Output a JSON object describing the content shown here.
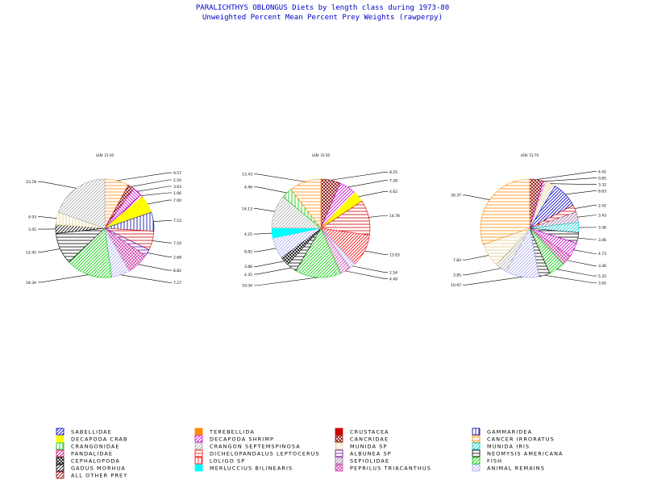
{
  "header": {
    "title": "PARALICHTHYS OBLONGUS Diets by length class during 1973-80",
    "subtitle": "Unweighted Percent Mean Percent Prey Weights (rawperpy)"
  },
  "colors": {
    "title_text": "#0000cc",
    "SABELLIDAE": "#0000cc",
    "TEREBELLIDA": "#ff8800",
    "CRUSTACEA": "#cc0000",
    "GAMMARIDEA": "#000099",
    "DECAPODA CRAB": "#ffff00",
    "DECAPODA SHRIMP": "#cc00cc",
    "CANCRIDAE": "#880000",
    "CANCER IRRORATUS": "#ff8800",
    "CRANGONIDAE": "#00cc00",
    "CRANGON SEPTEMSPINOSA": "#aaaaaa",
    "MUNIDA SP": "#ddcc88",
    "MUNIDA IRIS": "#00cccc",
    "PANDALIDAE": "#cc0066",
    "DICHELOPANDALUS LEPTOCERUS": "#ff0000",
    "ALBUNEA SP": "#660099",
    "NEOMYSIS AMERICANA": "#000000",
    "CEPHALOPODA": "#000000",
    "LOLIGO SP": "#ff0000",
    "SEPIOLIDAE": "#996699",
    "FISH": "#00cc00",
    "GADUS MORHUA": "#000000",
    "MERLUCCIUS BILINEARIS": "#00ffff",
    "PEPRILUS TRIACANTHUS": "#cc44aa",
    "ANIMAL REMAINS": "#aaaaee",
    "ALL OTHER PREY": "#880000"
  },
  "legend": {
    "items": [
      {
        "label": "SABELLIDAE",
        "icon": "diagonal-hatch-icon"
      },
      {
        "label": "TEREBELLIDA",
        "icon": "solid-swatch-icon"
      },
      {
        "label": "CRUSTACEA",
        "icon": "solid-swatch-icon"
      },
      {
        "label": "GAMMARIDEA",
        "icon": "vertical-hatch-icon"
      },
      {
        "label": "DECAPODA CRAB",
        "icon": "solid-swatch-icon"
      },
      {
        "label": "DECAPODA SHRIMP",
        "icon": "diagonal-hatch-icon"
      },
      {
        "label": "CANCRIDAE",
        "icon": "cross-hatch-icon"
      },
      {
        "label": "CANCER IRRORATUS",
        "icon": "horizontal-hatch-icon"
      },
      {
        "label": "CRANGONIDAE",
        "icon": "vertical-hatch-icon"
      },
      {
        "label": "CRANGON SEPTEMSPINOSA",
        "icon": "diagonal-hatch-icon"
      },
      {
        "label": "MUNIDA SP",
        "icon": "vertical-hatch-icon"
      },
      {
        "label": "MUNIDA IRIS",
        "icon": "diagonal-hatch-icon"
      },
      {
        "label": "PANDALIDAE",
        "icon": "diagonal-hatch-icon"
      },
      {
        "label": "DICHELOPANDALUS LEPTOCERUS",
        "icon": "horizontal-hatch-icon"
      },
      {
        "label": "ALBUNEA SP",
        "icon": "horizontal-hatch-icon"
      },
      {
        "label": "NEOMYSIS AMERICANA",
        "icon": "horizontal-hatch-icon"
      },
      {
        "label": "CEPHALOPODA",
        "icon": "cross-hatch-icon"
      },
      {
        "label": "LOLIGO SP",
        "icon": "vertical-hatch-icon"
      },
      {
        "label": "SEPIOLIDAE",
        "icon": "diagonal-hatch-icon"
      },
      {
        "label": "FISH",
        "icon": "diagonal-hatch-icon"
      },
      {
        "label": "GADUS MORHUA",
        "icon": "diagonal-hatch-icon"
      },
      {
        "label": "MERLUCCIUS BILINEARIS",
        "icon": "solid-swatch-icon"
      },
      {
        "label": "PEPRILUS TRIACANTHUS",
        "icon": "cross-hatch-icon"
      },
      {
        "label": "ANIMAL REMAINS",
        "icon": "diagonal-hatch-icon"
      },
      {
        "label": "ALL OTHER PREY",
        "icon": "diagonal-hatch-icon"
      }
    ]
  },
  "chart_data": [
    {
      "type": "pie",
      "title": "LEN: 21-30",
      "slices": [
        {
          "label": "TEREBELLIDA",
          "value": 9.57,
          "pattern": "horizontal"
        },
        {
          "label": "CANCRIDAE",
          "value": 2.5,
          "pattern": "cross"
        },
        {
          "label": "DECAPODA SHRIMP",
          "value": 3.63,
          "pattern": "backdiag"
        },
        {
          "label": "DECAPODA SHRIMP",
          "value": 1.06,
          "pattern": "diag"
        },
        {
          "label": "DECAPODA CRAB",
          "value": 7.0,
          "pattern": "solid"
        },
        {
          "label": "GAMMARIDEA",
          "value": 7.53,
          "pattern": "vertical"
        },
        {
          "label": "CRUSTACEA",
          "value": 7.54,
          "pattern": "horizontal"
        },
        {
          "label": "ALBUNEA SP",
          "value": 2.68,
          "pattern": "horizontal"
        },
        {
          "label": "PEPRILUS TRIACANTHUS",
          "value": 8.82,
          "pattern": "cross"
        },
        {
          "label": "ANIMAL REMAINS",
          "value": 7.27,
          "pattern": "diag"
        },
        {
          "label": "FISH",
          "value": 18.34,
          "pattern": "diag"
        },
        {
          "label": "NEOMYSIS AMERICANA",
          "value": 12.45,
          "pattern": "horizontal"
        },
        {
          "label": "GADUS MORHUA",
          "value": 3.45,
          "pattern": "diag"
        },
        {
          "label": "MUNIDA SP",
          "value": 4.93,
          "pattern": "vertical"
        },
        {
          "label": "CRANGON SEPTEMSPINOSA",
          "value": 23.78,
          "pattern": "diag"
        }
      ],
      "value_labels": [
        "9.57",
        "2.50",
        "3.63",
        "1.06",
        "7.00",
        "7.53",
        "7.54",
        "2.68",
        "8.82",
        "7.27",
        "18.34",
        "12.45",
        "3.45",
        "4.93",
        "23.78"
      ]
    },
    {
      "type": "pie",
      "title": "LEN: 31-50",
      "slices": [
        {
          "label": "CANCRIDAE",
          "value": 8.25,
          "pattern": "cross"
        },
        {
          "label": "DECAPODA SHRIMP",
          "value": 7.28,
          "pattern": "diag"
        },
        {
          "label": "DECAPODA CRAB",
          "value": 4.62,
          "pattern": "solid"
        },
        {
          "label": "CRUSTACEA",
          "value": 14.78,
          "pattern": "horizontal"
        },
        {
          "label": "DICHELOPANDALUS LEPTOCERUS",
          "value": 13.83,
          "pattern": "diag"
        },
        {
          "label": "ANIMAL REMAINS",
          "value": 2.54,
          "pattern": "diag"
        },
        {
          "label": "PEPRILUS TRIACANTHUS",
          "value": 4.49,
          "pattern": "diag"
        },
        {
          "label": "FISH",
          "value": 19.34,
          "pattern": "diag"
        },
        {
          "label": "NEOMYSIS AMERICANA",
          "value": 4.35,
          "pattern": "horizontal"
        },
        {
          "label": "CEPHALOPODA",
          "value": 3.88,
          "pattern": "cross"
        },
        {
          "label": "ANIMAL REMAINS",
          "value": 8.82,
          "pattern": "diag"
        },
        {
          "label": "MERLUCCIUS BILINEARIS",
          "value": 4.25,
          "pattern": "solid"
        },
        {
          "label": "CRANGON SEPTEMSPINOSA",
          "value": 14.13,
          "pattern": "diag"
        },
        {
          "label": "CRANGONIDAE",
          "value": 4.46,
          "pattern": "vertical"
        },
        {
          "label": "TEREBELLIDA",
          "value": 13.43,
          "pattern": "horizontal"
        }
      ],
      "value_labels": [
        "8.25",
        "7.28",
        "4.62",
        "14.78",
        "13.83",
        "2.54",
        "4.49",
        "19.34",
        "4.35",
        "3.88",
        "8.82",
        "4.25",
        "14.13",
        "4.46",
        "13.43"
      ]
    },
    {
      "type": "pie",
      "title": "LEN: 51-70",
      "slices": [
        {
          "label": "CANCRIDAE",
          "value": 4.42,
          "pattern": "cross"
        },
        {
          "label": "DECAPODA SHRIMP",
          "value": 0.85,
          "pattern": "diag"
        },
        {
          "label": "MUNIDA SP",
          "value": 3.32,
          "pattern": "diag"
        },
        {
          "label": "SABELLIDAE",
          "value": 8.63,
          "pattern": "diag"
        },
        {
          "label": "CRUSTACEA",
          "value": 2.42,
          "pattern": "horizontal"
        },
        {
          "label": "SEPIOLIDAE",
          "value": 3.43,
          "pattern": "diag"
        },
        {
          "label": "MUNIDA IRIS",
          "value": 3.36,
          "pattern": "diag"
        },
        {
          "label": "NEOMYSIS AMERICANA",
          "value": 3.46,
          "pattern": "horizontal"
        },
        {
          "label": "DECAPODA SHRIMP",
          "value": 4.73,
          "pattern": "diag"
        },
        {
          "label": "PEPRILUS TRIACANTHUS",
          "value": 3.36,
          "pattern": "cross"
        },
        {
          "label": "FISH",
          "value": 5.35,
          "pattern": "diag"
        },
        {
          "label": "NEOMYSIS AMERICANA",
          "value": 3.65,
          "pattern": "horizontal"
        },
        {
          "label": "ANIMAL REMAINS",
          "value": 10.97,
          "pattern": "diag"
        },
        {
          "label": "CRANGON SEPTEMSPINOSA",
          "value": 3.85,
          "pattern": "diag"
        },
        {
          "label": "MUNIDA SP",
          "value": 7.83,
          "pattern": "horizontal"
        },
        {
          "label": "CANCER IRRORATUS",
          "value": 30.37,
          "pattern": "horizontal"
        }
      ],
      "value_labels": [
        "4.42",
        "0.85",
        "3.32",
        "8.63",
        "2.42",
        "3.43",
        "3.36",
        "3.46",
        "4.73",
        "3.36",
        "5.35",
        "3.65",
        "10.97",
        "3.85",
        "7.83",
        "30.37"
      ]
    }
  ]
}
